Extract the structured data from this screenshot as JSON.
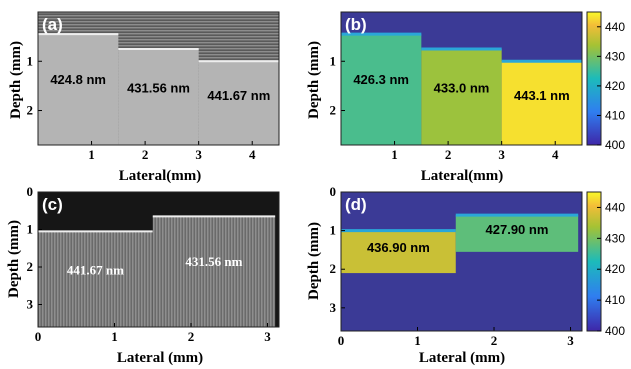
{
  "colors": {
    "colormap_low": "#3b3a96",
    "colormap_high": "#f8f32a"
  },
  "chart_data": [
    {
      "panel": "(a)",
      "type": "heatmap",
      "style": "grayscale",
      "xlabel": "Lateral(mm)",
      "ylabel": "Depth (mm)",
      "x_ticks": [
        "1",
        "2",
        "3",
        "4"
      ],
      "y_ticks": [
        "1",
        "2"
      ],
      "xlim": [
        0,
        4.5
      ],
      "ylim": [
        2.7,
        0
      ],
      "segments": [
        {
          "label": "424.8 nm",
          "x": [
            0,
            1.5
          ],
          "surface_depth": 0.45
        },
        {
          "label": "431.56 nm",
          "x": [
            1.5,
            3.0
          ],
          "surface_depth": 0.75
        },
        {
          "label": "441.67 nm",
          "x": [
            3.0,
            4.5
          ],
          "surface_depth": 1.0
        }
      ]
    },
    {
      "panel": "(b)",
      "type": "heatmap",
      "style": "colormap",
      "xlabel": "Lateral(mm)",
      "ylabel": "Depth (mm)",
      "x_ticks": [
        "1",
        "2",
        "3",
        "4"
      ],
      "y_ticks": [
        "1",
        "2"
      ],
      "xlim": [
        0,
        4.5
      ],
      "ylim": [
        2.7,
        0
      ],
      "colorbar": {
        "min": 400,
        "max": 445,
        "ticks": [
          "440",
          "430",
          "420",
          "410",
          "400"
        ]
      },
      "segments": [
        {
          "label": "426.3 nm",
          "value": 426.3,
          "x": [
            0,
            1.5
          ],
          "surface_depth": 0.45
        },
        {
          "label": "433.0 nm",
          "value": 433.0,
          "x": [
            1.5,
            3.0
          ],
          "surface_depth": 0.75
        },
        {
          "label": "443.1 nm",
          "value": 443.1,
          "x": [
            3.0,
            4.5
          ],
          "surface_depth": 1.0
        }
      ]
    },
    {
      "panel": "(c)",
      "type": "heatmap",
      "style": "grayscale",
      "xlabel": "Lateral (mm)",
      "ylabel": "Depth (mm)",
      "x_ticks": [
        "0",
        "1",
        "2",
        "3"
      ],
      "y_ticks": [
        "0",
        "1",
        "2",
        "3"
      ],
      "xlim": [
        0,
        3.15
      ],
      "ylim": [
        3.6,
        0
      ],
      "segments": [
        {
          "label": "441.67 nm",
          "x": [
            0,
            1.5
          ],
          "surface_depth": 1.05
        },
        {
          "label": "431.56 nm",
          "x": [
            1.5,
            3.1
          ],
          "surface_depth": 0.65
        }
      ]
    },
    {
      "panel": "(d)",
      "type": "heatmap",
      "style": "colormap",
      "xlabel": "Lateral (mm)",
      "ylabel": "Depth (mm)",
      "x_ticks": [
        "0",
        "1",
        "2",
        "3"
      ],
      "y_ticks": [
        "0",
        "1",
        "2",
        "3"
      ],
      "xlim": [
        0,
        3.15
      ],
      "ylim": [
        3.6,
        0
      ],
      "colorbar": {
        "min": 400,
        "max": 445,
        "ticks": [
          "440",
          "430",
          "420",
          "410",
          "400"
        ]
      },
      "segments": [
        {
          "label": "436.90 nm",
          "value": 436.9,
          "x": [
            0,
            1.5
          ],
          "surface_depth": 1.0,
          "bottom_depth": 2.1
        },
        {
          "label": "427.90 nm",
          "value": 427.9,
          "x": [
            1.5,
            3.1
          ],
          "surface_depth": 0.6,
          "bottom_depth": 1.55
        }
      ]
    }
  ]
}
